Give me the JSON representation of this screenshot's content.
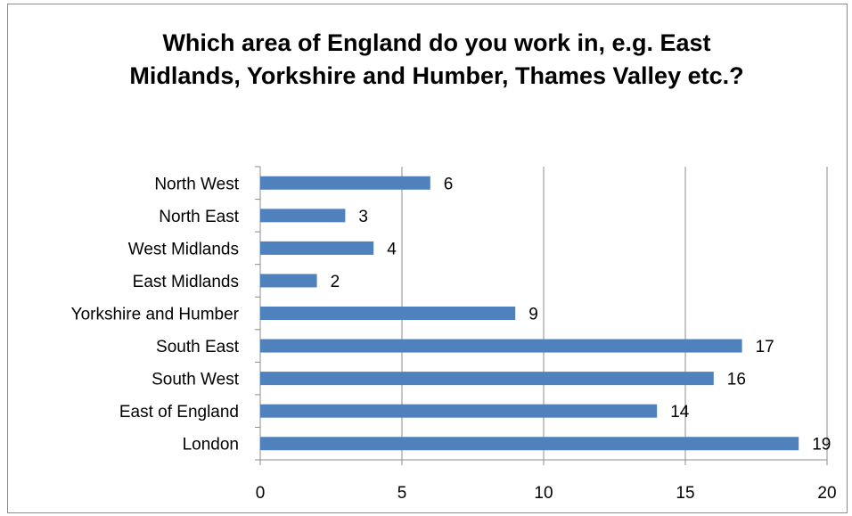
{
  "chart_data": {
    "type": "bar",
    "orientation": "horizontal",
    "title": "Which area of England do you work in, e.g. East Midlands, Yorkshire and Humber, Thames Valley etc.?",
    "categories": [
      "North West",
      "North East",
      "West Midlands",
      "East Midlands",
      "Yorkshire and Humber",
      "South East",
      "South West",
      "East of England",
      "London"
    ],
    "values": [
      6,
      3,
      4,
      2,
      9,
      17,
      16,
      14,
      19
    ],
    "xlim": [
      0,
      20
    ],
    "xticks": [
      0,
      5,
      10,
      15,
      20
    ],
    "grid": "vertical",
    "legend": "none",
    "data_labels": true,
    "bar_color": "#4f81bd"
  }
}
